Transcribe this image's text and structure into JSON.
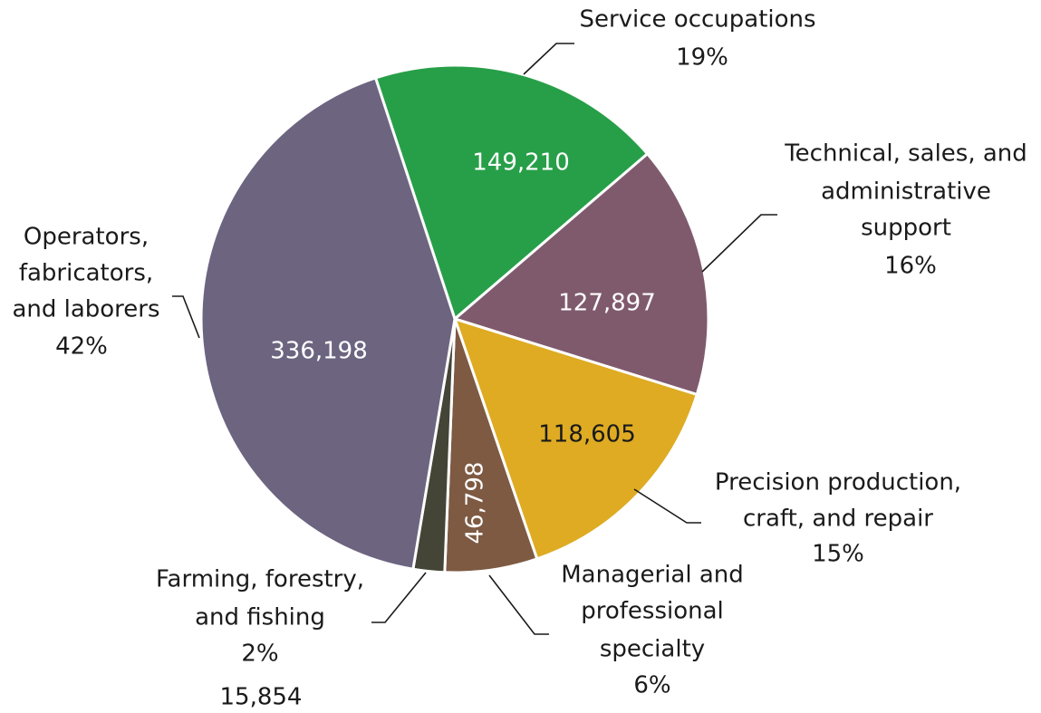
{
  "chart_data": {
    "type": "pie",
    "categories": [
      [
        "Service occupations"
      ],
      [
        "Technical, sales, and",
        "administrative",
        "support"
      ],
      [
        "Precision production,",
        "craft, and repair"
      ],
      [
        "Managerial and",
        "professional",
        "specialty"
      ],
      [
        "Farming, forestry,",
        "and fishing"
      ],
      [
        "Operators,",
        "fabricators,",
        "and laborers"
      ]
    ],
    "values": [
      149210,
      127897,
      118605,
      46798,
      15854,
      336198
    ],
    "value_labels": [
      "149,210",
      "127,897",
      "118,605",
      "46,798",
      "15,854",
      "336,198"
    ],
    "percent_labels": [
      "19%",
      "16%",
      "15%",
      "6%",
      "2%",
      "42%"
    ],
    "colors": [
      "#279f48",
      "#7f5a6d",
      "#deab23",
      "#7e5a43",
      "#454537",
      "#6d6480"
    ],
    "value_label_colors": [
      "#ffffff",
      "#ffffff",
      "#1a1a1a",
      "#ffffff",
      "#1a1a1a",
      "#ffffff"
    ]
  }
}
